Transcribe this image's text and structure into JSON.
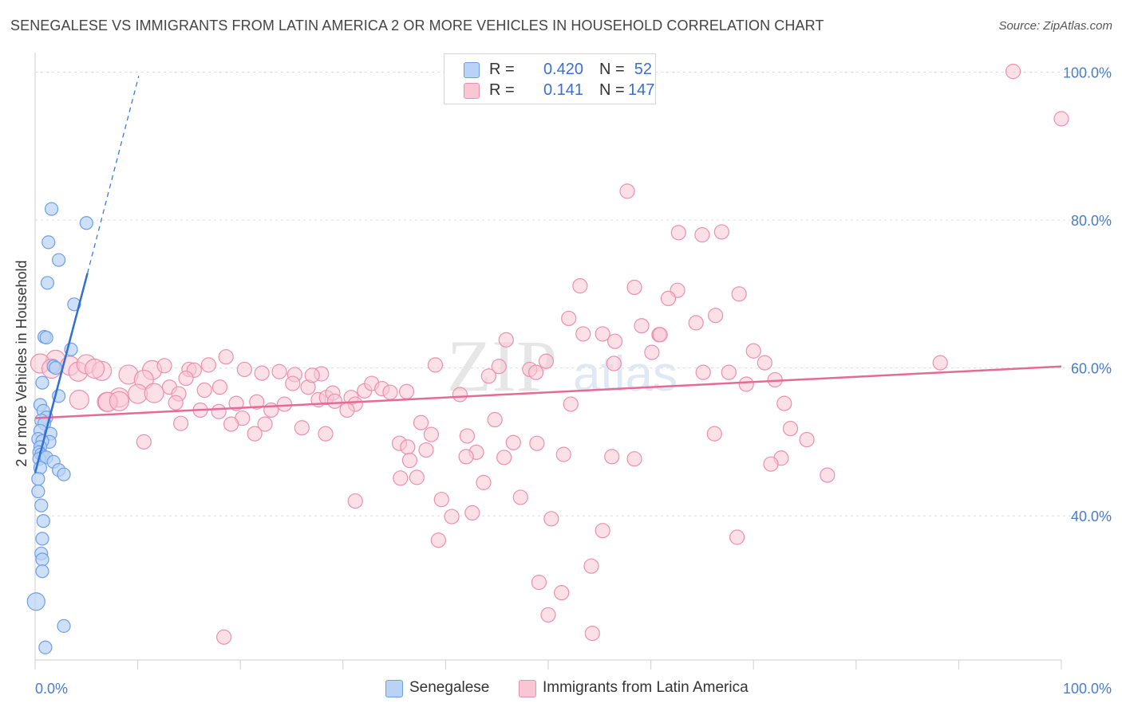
{
  "title": "SENEGALESE VS IMMIGRANTS FROM LATIN AMERICA 2 OR MORE VEHICLES IN HOUSEHOLD CORRELATION CHART",
  "source": "Source: ZipAtlas.com",
  "watermark": {
    "zip": "ZIP",
    "atlas": "atlas"
  },
  "legend": {
    "series1": {
      "r_label": "R =",
      "r_value": "0.420",
      "n_label": "N =",
      "n_value": "52"
    },
    "series2": {
      "r_label": "R =",
      "r_value": "0.141",
      "n_label": "N =",
      "n_value": "147"
    }
  },
  "bottom_legend": {
    "series1": "Senegalese",
    "series2": "Immigrants from Latin America"
  },
  "colors": {
    "blue_fill": "#b9d3f5",
    "blue_stroke": "#6d9ee6",
    "blue_line": "#2f6fd6",
    "pink_fill": "#f9c6d6",
    "pink_stroke": "#ec8fae",
    "pink_line": "#e56a96",
    "grid": "#dcdcdc",
    "tick_text": "#4a7cc9"
  },
  "chart_data": {
    "type": "scatter",
    "title": "SENEGALESE VS IMMIGRANTS FROM LATIN AMERICA 2 OR MORE VEHICLES IN HOUSEHOLD CORRELATION CHART",
    "xlabel": "",
    "ylabel": "2 or more Vehicles in Household",
    "xlim": [
      0,
      100
    ],
    "ylim": [
      20.5,
      102
    ],
    "x_tick_labels": [
      "0.0%",
      "100.0%"
    ],
    "y_ticks": [
      40,
      60,
      80,
      100
    ],
    "y_tick_labels": [
      "40.0%",
      "60.0%",
      "80.0%",
      "100.0%"
    ],
    "grid": true,
    "series": [
      {
        "name": "Senegalese",
        "r": 0.42,
        "n": 52,
        "trend": {
          "x0": 0,
          "y0": 45.8,
          "x1": 5.1,
          "y1": 72.8,
          "dashed_to": {
            "x": 10.1,
            "y": 99.5
          }
        },
        "points": [
          [
            1.6,
            81.5
          ],
          [
            5.0,
            79.6
          ],
          [
            1.3,
            77.0
          ],
          [
            2.3,
            74.6
          ],
          [
            1.2,
            71.5
          ],
          [
            3.8,
            68.6
          ],
          [
            0.9,
            64.2
          ],
          [
            1.1,
            64.1
          ],
          [
            3.5,
            62.5
          ],
          [
            1.8,
            60.2
          ],
          [
            2.0,
            60.0
          ],
          [
            0.7,
            58.0
          ],
          [
            2.3,
            56.2
          ],
          [
            0.5,
            55.0
          ],
          [
            0.8,
            54.2
          ],
          [
            1.1,
            53.3
          ],
          [
            0.6,
            52.9
          ],
          [
            0.9,
            52.5
          ],
          [
            0.5,
            51.5
          ],
          [
            1.5,
            51.1
          ],
          [
            0.3,
            50.4
          ],
          [
            1.4,
            50.0
          ],
          [
            0.7,
            50.1
          ],
          [
            0.5,
            49.3
          ],
          [
            0.4,
            48.6
          ],
          [
            0.6,
            48.3
          ],
          [
            0.8,
            48.0
          ],
          [
            0.4,
            47.7
          ],
          [
            1.1,
            47.9
          ],
          [
            1.8,
            47.3
          ],
          [
            0.5,
            46.5
          ],
          [
            2.3,
            46.2
          ],
          [
            2.8,
            45.6
          ],
          [
            0.3,
            45.0
          ],
          [
            0.3,
            43.3
          ],
          [
            0.6,
            41.4
          ],
          [
            0.8,
            39.3
          ],
          [
            0.7,
            36.9
          ],
          [
            0.6,
            34.9
          ],
          [
            0.7,
            34.1
          ],
          [
            0.7,
            32.5
          ],
          [
            0.1,
            28.4
          ],
          [
            2.8,
            25.1
          ],
          [
            1.0,
            22.2
          ]
        ]
      },
      {
        "name": "Immigrants from Latin America",
        "r": 0.141,
        "n": 147,
        "trend": {
          "x0": 0,
          "y0": 53.2,
          "x1": 100,
          "y1": 60.2
        },
        "points": [
          [
            95.3,
            100.1
          ],
          [
            100.0,
            93.7
          ],
          [
            57.7,
            83.9
          ],
          [
            62.7,
            78.3
          ],
          [
            65.0,
            78.0
          ],
          [
            66.9,
            78.4
          ],
          [
            53.1,
            71.1
          ],
          [
            58.4,
            70.9
          ],
          [
            62.6,
            70.5
          ],
          [
            61.7,
            69.4
          ],
          [
            68.6,
            70.0
          ],
          [
            52.0,
            66.7
          ],
          [
            59.1,
            65.7
          ],
          [
            64.4,
            66.1
          ],
          [
            66.3,
            67.1
          ],
          [
            45.9,
            63.8
          ],
          [
            53.4,
            64.6
          ],
          [
            55.3,
            64.6
          ],
          [
            56.5,
            63.6
          ],
          [
            60.8,
            64.5
          ],
          [
            60.9,
            64.5
          ],
          [
            70.0,
            62.3
          ],
          [
            60.1,
            62.1
          ],
          [
            49.8,
            60.9
          ],
          [
            56.4,
            60.6
          ],
          [
            71.1,
            60.7
          ],
          [
            88.2,
            60.7
          ],
          [
            39.0,
            60.4
          ],
          [
            45.2,
            60.2
          ],
          [
            48.2,
            59.8
          ],
          [
            48.8,
            59.4
          ],
          [
            65.1,
            59.4
          ],
          [
            67.6,
            59.4
          ],
          [
            44.2,
            58.9
          ],
          [
            72.1,
            58.4
          ],
          [
            69.3,
            57.8
          ],
          [
            41.4,
            56.4
          ],
          [
            52.2,
            55.1
          ],
          [
            73.0,
            55.2
          ],
          [
            44.8,
            53.0
          ],
          [
            37.6,
            52.6
          ],
          [
            73.6,
            51.8
          ],
          [
            38.6,
            51.0
          ],
          [
            42.1,
            50.8
          ],
          [
            66.2,
            51.1
          ],
          [
            75.2,
            50.3
          ],
          [
            35.5,
            49.8
          ],
          [
            46.6,
            49.9
          ],
          [
            48.9,
            49.8
          ],
          [
            36.3,
            49.3
          ],
          [
            38.1,
            48.9
          ],
          [
            43.0,
            48.6
          ],
          [
            51.5,
            48.3
          ],
          [
            56.2,
            48.0
          ],
          [
            42.0,
            48.0
          ],
          [
            45.7,
            47.9
          ],
          [
            58.4,
            47.7
          ],
          [
            36.5,
            47.5
          ],
          [
            72.7,
            47.8
          ],
          [
            71.7,
            47.0
          ],
          [
            35.6,
            45.1
          ],
          [
            37.2,
            45.2
          ],
          [
            43.7,
            44.5
          ],
          [
            77.2,
            45.5
          ],
          [
            31.2,
            42.0
          ],
          [
            39.6,
            42.2
          ],
          [
            47.3,
            42.5
          ],
          [
            42.6,
            40.4
          ],
          [
            40.6,
            39.9
          ],
          [
            50.3,
            39.6
          ],
          [
            55.3,
            38.0
          ],
          [
            68.4,
            37.1
          ],
          [
            39.3,
            36.7
          ],
          [
            54.2,
            33.2
          ],
          [
            49.1,
            31.0
          ],
          [
            51.3,
            29.6
          ],
          [
            50.0,
            26.6
          ],
          [
            54.3,
            24.1
          ],
          [
            18.4,
            23.6
          ],
          [
            2.0,
            61.1
          ],
          [
            0.5,
            60.6
          ],
          [
            3.4,
            60.3
          ],
          [
            1.6,
            59.9
          ],
          [
            4.2,
            59.5
          ],
          [
            5.0,
            60.5
          ],
          [
            6.5,
            59.6
          ],
          [
            9.1,
            59.1
          ],
          [
            11.4,
            59.7
          ],
          [
            12.6,
            60.3
          ],
          [
            15.0,
            59.8
          ],
          [
            15.5,
            59.7
          ],
          [
            14.7,
            58.6
          ],
          [
            20.4,
            59.8
          ],
          [
            22.1,
            59.3
          ],
          [
            23.8,
            59.5
          ],
          [
            25.3,
            59.1
          ],
          [
            27.9,
            59.2
          ],
          [
            16.9,
            60.4
          ],
          [
            18.6,
            61.5
          ],
          [
            10.6,
            58.4
          ],
          [
            8.2,
            56.0
          ],
          [
            7.0,
            55.4
          ],
          [
            10.0,
            56.5
          ],
          [
            11.6,
            56.6
          ],
          [
            13.1,
            57.4
          ],
          [
            14.0,
            56.5
          ],
          [
            16.5,
            57.0
          ],
          [
            18.0,
            57.4
          ],
          [
            25.1,
            57.9
          ],
          [
            26.6,
            57.4
          ],
          [
            27.6,
            55.7
          ],
          [
            28.4,
            56.0
          ],
          [
            29.0,
            56.6
          ],
          [
            30.8,
            56.0
          ],
          [
            32.1,
            56.9
          ],
          [
            32.8,
            57.9
          ],
          [
            33.8,
            57.2
          ],
          [
            34.6,
            56.7
          ],
          [
            36.2,
            56.8
          ],
          [
            27.0,
            59.0
          ],
          [
            21.6,
            55.4
          ],
          [
            19.6,
            55.2
          ],
          [
            17.9,
            54.1
          ],
          [
            16.1,
            54.3
          ],
          [
            13.7,
            55.3
          ],
          [
            31.2,
            55.1
          ],
          [
            30.4,
            54.3
          ],
          [
            29.2,
            55.5
          ],
          [
            24.3,
            55.1
          ],
          [
            23.0,
            54.3
          ],
          [
            20.2,
            53.2
          ],
          [
            22.4,
            52.4
          ],
          [
            28.3,
            51.1
          ],
          [
            26.0,
            51.9
          ],
          [
            21.4,
            51.1
          ],
          [
            19.1,
            52.4
          ],
          [
            14.2,
            52.5
          ],
          [
            10.6,
            50.0
          ],
          [
            7.1,
            55.4
          ],
          [
            8.2,
            55.5
          ],
          [
            4.3,
            55.7
          ],
          [
            5.8,
            59.9
          ]
        ]
      }
    ]
  }
}
